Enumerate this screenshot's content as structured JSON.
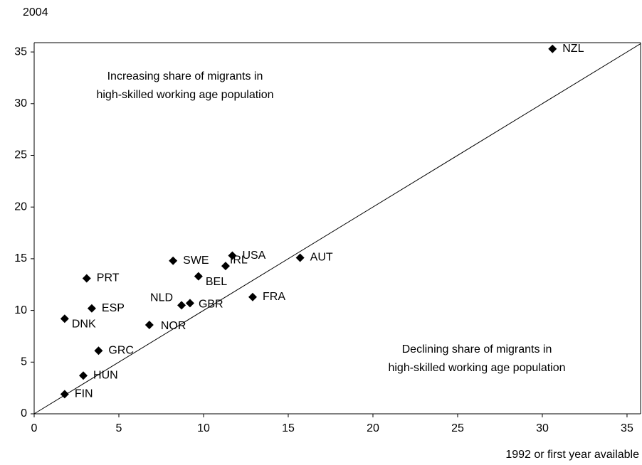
{
  "chart_data": {
    "type": "scatter",
    "y_axis_title": "2004",
    "x_axis_title": "1992 or first year available",
    "annotations": [
      [
        "Increasing share of migrants in",
        "high-skilled working age population"
      ],
      [
        "Declining share of migrants in",
        "high-skilled working age population"
      ]
    ],
    "labels": [
      "NZL",
      "AUT",
      "FRA",
      "USA",
      "IRL",
      "SWE",
      "BEL",
      "GBR",
      "NLD",
      "NOR",
      "PRT",
      "ESP",
      "DNK",
      "GRC",
      "HUN",
      "FIN"
    ],
    "x": [
      30.6,
      15.7,
      12.9,
      11.7,
      11.3,
      8.2,
      9.7,
      9.2,
      8.7,
      6.8,
      3.1,
      3.4,
      1.8,
      3.8,
      2.9,
      1.8
    ],
    "y": [
      35.3,
      15.1,
      11.3,
      15.3,
      14.3,
      14.8,
      13.3,
      10.7,
      10.5,
      8.6,
      13.1,
      10.2,
      9.2,
      6.1,
      3.7,
      1.9
    ],
    "color": "#000000",
    "xlim": [
      0,
      35.8
    ],
    "ylim": [
      0,
      35.9
    ],
    "xticks": [
      0,
      5,
      10,
      15,
      20,
      25,
      30,
      35
    ],
    "yticks": [
      0,
      5,
      10,
      15,
      20,
      25,
      30,
      35
    ],
    "grid": false
  }
}
